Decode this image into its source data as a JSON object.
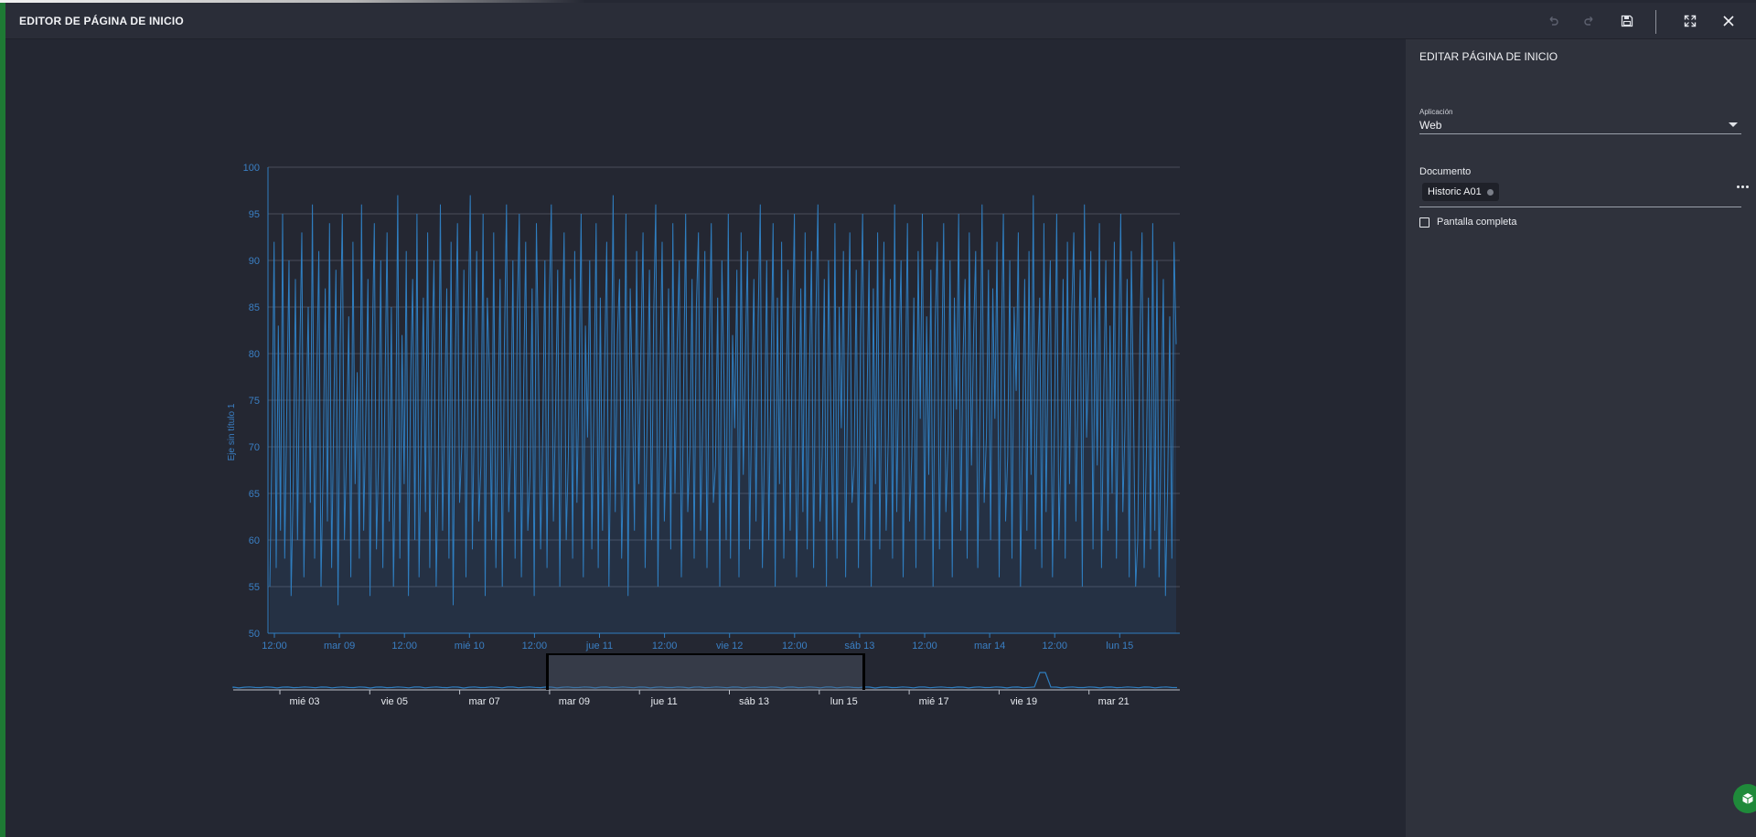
{
  "header": {
    "title": "EDITOR DE PÁGINA DE INICIO",
    "buttons": [
      {
        "name": "undo-icon",
        "icon": "undo"
      },
      {
        "name": "redo-icon",
        "icon": "redo"
      },
      {
        "name": "save-icon",
        "icon": "floppy-disk"
      },
      {
        "name": "fullscreen-icon",
        "icon": "expand-arrows"
      },
      {
        "name": "close-icon",
        "icon": "x"
      }
    ]
  },
  "panel": {
    "title": "EDITAR PÁGINA DE INICIO",
    "app_label": "Aplicación",
    "app_value": "Web",
    "document_label": "Documento",
    "document_chip": "Historic A01",
    "fullscreen_label": "Pantalla completa",
    "fullscreen_checked": false
  },
  "colors": {
    "accent": "#1e7a34",
    "series": "#2f7ec0",
    "axis_text": "#3a7fc4",
    "navigator_text": "#e8ebf0"
  },
  "chart_data": {
    "type": "line",
    "title": "",
    "ylabel": "Eje sin título 1",
    "ylim": [
      50,
      100
    ],
    "yticks": [
      50,
      55,
      60,
      65,
      70,
      75,
      80,
      85,
      90,
      95,
      100
    ],
    "xlim": [
      "2021-03-08T11:00",
      "2021-03-15T23:00"
    ],
    "xtick_labels": [
      "12:00",
      "mar 09",
      "12:00",
      "mié 10",
      "12:00",
      "jue 11",
      "12:00",
      "vie 12",
      "12:00",
      "sáb 13",
      "12:00",
      "mar 14",
      "12:00",
      "lun 15"
    ],
    "grid": true,
    "series": [
      {
        "values": [
          55,
          70,
          92,
          57,
          83,
          61,
          95,
          58,
          75,
          90,
          54,
          66,
          88,
          60,
          79,
          93,
          56,
          72,
          85,
          64,
          96,
          58,
          77,
          91,
          55,
          68,
          87,
          62,
          94,
          57,
          74,
          89,
          53,
          81,
          95,
          60,
          70,
          84,
          56,
          92,
          66,
          78,
          58,
          96,
          61,
          73,
          88,
          54,
          80,
          94,
          59,
          69,
          90,
          57,
          76,
          93,
          62,
          85,
          55,
          71,
          97,
          58,
          82,
          66,
          91,
          54,
          77,
          88,
          60,
          95,
          56,
          72,
          86,
          63,
          93,
          57,
          79,
          90,
          55,
          68,
          96,
          61,
          74,
          87,
          58,
          92,
          53,
          80,
          94,
          64,
          70,
          89,
          56,
          83,
          97,
          59,
          75,
          91,
          62,
          68,
          95,
          54,
          86,
          78,
          60,
          93,
          57,
          73,
          88,
          55,
          81,
          96,
          63,
          70,
          90,
          58,
          84,
          95,
          56,
          76,
          92,
          61,
          67,
          87,
          54,
          94,
          79,
          59,
          72,
          90,
          57,
          85,
          96,
          62,
          74,
          89,
          55,
          80,
          93,
          60,
          69,
          88,
          58,
          91,
          64,
          77,
          95,
          56,
          83,
          71,
          90,
          59,
          75,
          94,
          57,
          86,
          61,
          79,
          92,
          55,
          73,
          97,
          63,
          82,
          88,
          58,
          70,
          95,
          54,
          87,
          76,
          61,
          91,
          66,
          80,
          93,
          57,
          74,
          89,
          60,
          84,
          96,
          55,
          78,
          92,
          62,
          71,
          87,
          59,
          94,
          65,
          81,
          90,
          56,
          76,
          95,
          63,
          70,
          88,
          58,
          85,
          93,
          61,
          73,
          91,
          57,
          79,
          94,
          64,
          68,
          86,
          55,
          90,
          77,
          60,
          95,
          58,
          82,
          72,
          89,
          56,
          93,
          67,
          80,
          91,
          59,
          75,
          88,
          62,
          84,
          96,
          57,
          71,
          90,
          60,
          78,
          94,
          55,
          86,
          66,
          92,
          58,
          74,
          89,
          61,
          81,
          95,
          56,
          70,
          87,
          63,
          93,
          59,
          77,
          91,
          57,
          83,
          96,
          62,
          69,
          88,
          55,
          90,
          75,
          60,
          94,
          58,
          85,
          72,
          91,
          56,
          79,
          93,
          64,
          68,
          89,
          57,
          82,
          95,
          60,
          74,
          90,
          55,
          87,
          66,
          93,
          59,
          78,
          92,
          61,
          71,
          88,
          58,
          96,
          63,
          80,
          90,
          56,
          76,
          94,
          62,
          69,
          86,
          57,
          91,
          73,
          95,
          60,
          84,
          67,
          89,
          55,
          83,
          92,
          59,
          77,
          94,
          63,
          70,
          90,
          56,
          86,
          74,
          95,
          61,
          79,
          88,
          58,
          93,
          68,
          82,
          91,
          57,
          75,
          96,
          64,
          71,
          89,
          60,
          87,
          73,
          92,
          56,
          80,
          95,
          62,
          69,
          90,
          58,
          85,
          76,
          93,
          55,
          72,
          88,
          61,
          91,
          67,
          97,
          59,
          78,
          86,
          57,
          94,
          63,
          81,
          90,
          56,
          74,
          95,
          60,
          70,
          88,
          58,
          92,
          66,
          84,
          93,
          62,
          77,
          89,
          55,
          96,
          71,
          80,
          91,
          59,
          86,
          68,
          94,
          57,
          75,
          90,
          61,
          83,
          65,
          92,
          58,
          79,
          95,
          63,
          72,
          88,
          56,
          91,
          74,
          55,
          60,
          82,
          93,
          57,
          69,
          86,
          59,
          94,
          61,
          90,
          56,
          73,
          88,
          54,
          66,
          84,
          58,
          92,
          81
        ]
      }
    ]
  },
  "navigator": {
    "labels": [
      "mié 03",
      "vie 05",
      "mar 07",
      "mar 09",
      "jue 11",
      "sáb 13",
      "lun 15",
      "mié 17",
      "vie 19",
      "mar 21"
    ],
    "selected_range": [
      "mar 08 11:00",
      "lun 15 23:00"
    ]
  }
}
